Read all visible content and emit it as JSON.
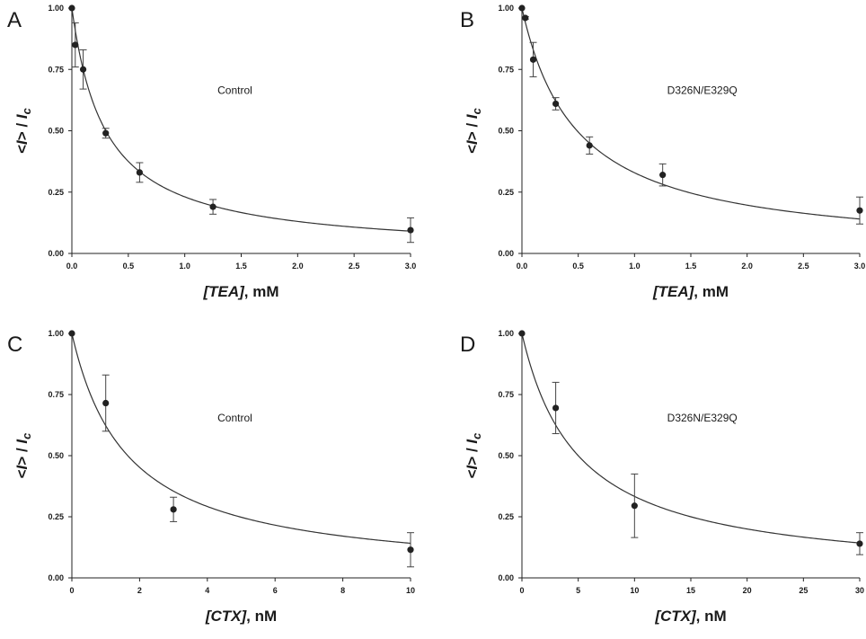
{
  "chart_data": [
    {
      "type": "scatter",
      "panel_label": "A",
      "annotation": "Control",
      "xlabel": "mM",
      "xlabel_var": "[TEA]",
      "ylabel": "<I> / Ic",
      "xlim": [
        0,
        3.0
      ],
      "ylim": [
        0,
        1.0
      ],
      "x_ticks": [
        "0.0",
        "0.5",
        "1.0",
        "1.5",
        "2.0",
        "2.5",
        "3.0"
      ],
      "y_ticks": [
        "0.00",
        "0.25",
        "0.50",
        "0.75",
        "1.00"
      ],
      "points": [
        {
          "x": 0,
          "y": 1.0,
          "err": 0
        },
        {
          "x": 0.03,
          "y": 0.85,
          "err": 0.09
        },
        {
          "x": 0.1,
          "y": 0.75,
          "err": 0.08
        },
        {
          "x": 0.3,
          "y": 0.49,
          "err": 0.02
        },
        {
          "x": 0.6,
          "y": 0.33,
          "err": 0.04
        },
        {
          "x": 1.25,
          "y": 0.19,
          "err": 0.03
        },
        {
          "x": 3.0,
          "y": 0.095,
          "err": 0.05
        }
      ],
      "fit": {
        "model": "1/(1+x/K)",
        "K": 0.3
      }
    },
    {
      "type": "scatter",
      "panel_label": "B",
      "annotation": "D326N/E329Q",
      "xlabel": "mM",
      "xlabel_var": "[TEA]",
      "ylabel": "<I> / Ic",
      "xlim": [
        0,
        3.0
      ],
      "ylim": [
        0,
        1.0
      ],
      "x_ticks": [
        "0.0",
        "0.5",
        "1.0",
        "1.5",
        "2.0",
        "2.5",
        "3.0"
      ],
      "y_ticks": [
        "0.00",
        "0.25",
        "0.50",
        "0.75",
        "1.00"
      ],
      "points": [
        {
          "x": 0,
          "y": 1.0,
          "err": 0
        },
        {
          "x": 0.03,
          "y": 0.96,
          "err": 0.005
        },
        {
          "x": 0.1,
          "y": 0.79,
          "err": 0.07
        },
        {
          "x": 0.3,
          "y": 0.61,
          "err": 0.025
        },
        {
          "x": 0.6,
          "y": 0.44,
          "err": 0.035
        },
        {
          "x": 1.25,
          "y": 0.32,
          "err": 0.045
        },
        {
          "x": 3.0,
          "y": 0.175,
          "err": 0.055
        }
      ],
      "fit": {
        "model": "1/(1+x/K)",
        "K": 0.49
      }
    },
    {
      "type": "scatter",
      "panel_label": "C",
      "annotation": "Control",
      "xlabel": "nM",
      "xlabel_var": "[CTX]",
      "ylabel": "<I> / Ic",
      "xlim": [
        0,
        10
      ],
      "ylim": [
        0,
        1.0
      ],
      "x_ticks": [
        "0",
        "2",
        "4",
        "6",
        "8",
        "10"
      ],
      "y_ticks": [
        "0.00",
        "0.25",
        "0.50",
        "0.75",
        "1.00"
      ],
      "points": [
        {
          "x": 0,
          "y": 1.0,
          "err": 0
        },
        {
          "x": 1,
          "y": 0.715,
          "err": 0.115
        },
        {
          "x": 3,
          "y": 0.28,
          "err": 0.05
        },
        {
          "x": 10,
          "y": 0.115,
          "err": 0.07
        }
      ],
      "fit": {
        "model": "1/(1+x/K)",
        "K": 1.65
      }
    },
    {
      "type": "scatter",
      "panel_label": "D",
      "annotation": "D326N/E329Q",
      "xlabel": "nM",
      "xlabel_var": "[CTX]",
      "ylabel": "<I> / Ic",
      "xlim": [
        0,
        30
      ],
      "ylim": [
        0,
        1.0
      ],
      "x_ticks": [
        "0",
        "5",
        "10",
        "15",
        "20",
        "25",
        "30"
      ],
      "y_ticks": [
        "0.00",
        "0.25",
        "0.50",
        "0.75",
        "1.00"
      ],
      "points": [
        {
          "x": 0,
          "y": 1.0,
          "err": 0
        },
        {
          "x": 3,
          "y": 0.695,
          "err": 0.105
        },
        {
          "x": 10,
          "y": 0.295,
          "err": 0.13
        },
        {
          "x": 30,
          "y": 0.14,
          "err": 0.045
        }
      ],
      "fit": {
        "model": "1/(1+x/K)",
        "K": 5.0
      }
    }
  ]
}
